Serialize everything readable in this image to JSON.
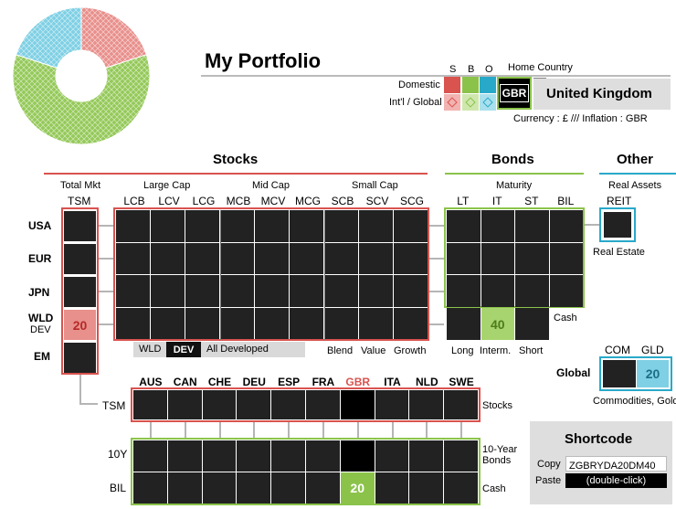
{
  "colors": {
    "stocks": "#d9534f",
    "bonds": "#8bc34a",
    "other": "#29a9c9",
    "cell": "#222222",
    "stocks_light": "#e8908c",
    "bonds_light": "#a8d46f",
    "other_light": "#7fd0e4"
  },
  "chart_data": {
    "type": "pie",
    "donut": true,
    "categories": [
      "Stocks",
      "Bonds",
      "Other"
    ],
    "values": [
      20,
      60,
      20
    ],
    "pattern": "crosshatch"
  },
  "header": {
    "title": "My Portfolio",
    "sbo_labels": [
      "S",
      "B",
      "O"
    ],
    "home_country_label": "Home Country",
    "domestic_label": "Domestic",
    "intl_label": "Int'l / Global",
    "country_code": "GBR",
    "country_name": "United Kingdom",
    "currency_line": "Currency : £  ///  Inflation : GBR",
    "dropdown_icon": "chevron-down-icon"
  },
  "sections": {
    "stocks": "Stocks",
    "bonds": "Bonds",
    "other": "Other"
  },
  "stocks": {
    "total_mkt": "Total Mkt",
    "tsm": "TSM",
    "large_cap": "Large Cap",
    "mid_cap": "Mid Cap",
    "small_cap": "Small Cap",
    "cols": [
      "LCB",
      "LCV",
      "LCG",
      "MCB",
      "MCV",
      "MCG",
      "SCB",
      "SCV",
      "SCG"
    ],
    "rows": [
      "USA",
      "EUR",
      "JPN",
      "WLD",
      "EM"
    ],
    "wld_sub": "DEV",
    "tsm_values": [
      "",
      "",
      "",
      "20",
      ""
    ],
    "toggle": {
      "wld": "WLD",
      "dev": "DEV",
      "desc": "All Developed"
    },
    "footer": [
      "Blend",
      "Value",
      "Growth"
    ]
  },
  "bonds": {
    "maturity": "Maturity",
    "cols": [
      "LT",
      "IT",
      "ST",
      "BIL"
    ],
    "value_it_wld": "40",
    "cash_label": "Cash",
    "footer": [
      "Long",
      "Interm.",
      "Short"
    ]
  },
  "other": {
    "real_assets": "Real Assets",
    "reit": "REIT",
    "real_estate": "Real Estate",
    "com": "COM",
    "gld": "GLD",
    "global": "Global",
    "gld_value": "20",
    "commodities": "Commodities, Gold"
  },
  "countries": {
    "cols": [
      "AUS",
      "CAN",
      "CHE",
      "DEU",
      "ESP",
      "FRA",
      "GBR",
      "ITA",
      "NLD",
      "SWE"
    ],
    "rows": [
      "TSM",
      "10Y",
      "BIL"
    ],
    "right_labels": [
      "Stocks",
      "10-Year Bonds",
      "Cash"
    ],
    "bil_gbr_value": "20"
  },
  "shortcode": {
    "title": "Shortcode",
    "copy_label": "Copy",
    "copy_value": "ZGBRYDA20DM40",
    "paste_label": "Paste",
    "paste_value": "(double-click)"
  }
}
